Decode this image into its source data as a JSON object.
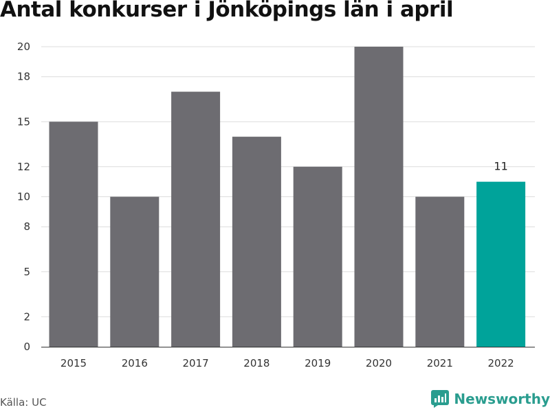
{
  "chart_data": {
    "type": "bar",
    "title": "Antal konkurser i Jönköpings län i april",
    "categories": [
      "2015",
      "2016",
      "2017",
      "2018",
      "2019",
      "2020",
      "2021",
      "2022"
    ],
    "values": [
      15,
      10,
      17,
      14,
      12,
      20,
      10,
      11
    ],
    "highlight_index": 7,
    "data_labels": [
      {
        "index": 7,
        "text": "11"
      }
    ],
    "y_ticks": [
      0,
      2,
      5,
      8,
      10,
      12,
      15,
      18,
      20
    ],
    "ylim": [
      0,
      20
    ],
    "xlabel": "",
    "ylabel": "",
    "grid": true,
    "colors": {
      "bar": "#6d6c71",
      "highlight": "#00a39a",
      "grid": "#dcdcdc",
      "axis": "#333333"
    }
  },
  "footer": {
    "source": "Källa: UC",
    "brand": "Newsworthy",
    "brand_icon": "newsworthy-logo-icon"
  }
}
